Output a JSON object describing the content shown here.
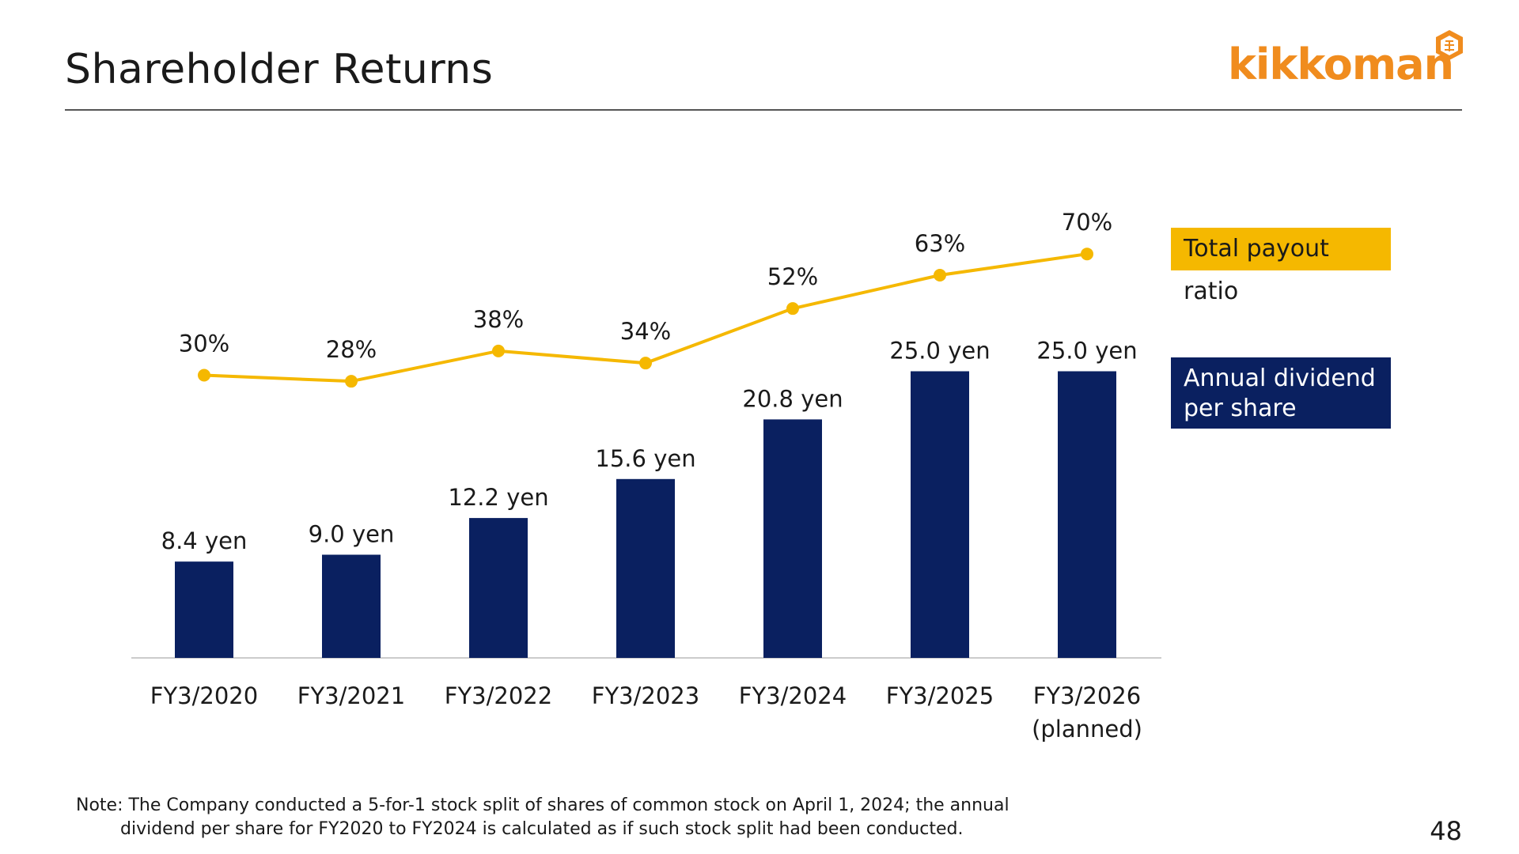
{
  "slide": {
    "title": "Shareholder Returns",
    "logo_text": "kikkoman",
    "note_line1": "Note: The Company conducted a 5-for-1 stock split of shares of common stock on April 1, 2024; the annual",
    "note_line2": "dividend per share for FY2020 to FY2024 is calculated as if such stock split had been conducted.",
    "page_number": "48"
  },
  "colors": {
    "bar": "#0a2060",
    "line": "#f5b800",
    "logo": "#f08c1e"
  },
  "chart_data": {
    "type": "bar",
    "categories": [
      "FY3/2020",
      "FY3/2021",
      "FY3/2022",
      "FY3/2023",
      "FY3/2024",
      "FY3/2025",
      "FY3/2026"
    ],
    "category_sublabels": [
      "",
      "",
      "",
      "",
      "",
      "",
      "(planned)"
    ],
    "series": [
      {
        "name": "Annual dividend per share",
        "type": "bar",
        "values": [
          8.4,
          9.0,
          12.2,
          15.6,
          20.8,
          25.0,
          25.0
        ],
        "labels": [
          "8.4 yen",
          "9.0 yen",
          "12.2 yen",
          "15.6 yen",
          "20.8 yen",
          "25.0 yen",
          "25.0 yen"
        ]
      },
      {
        "name": "Total payout ratio",
        "type": "line",
        "values": [
          30,
          28,
          38,
          34,
          52,
          63,
          70
        ],
        "labels": [
          "30%",
          "28%",
          "38%",
          "34%",
          "52%",
          "63%",
          "70%"
        ]
      }
    ],
    "legend": {
      "payout": "Total payout ratio",
      "dividend_line1": "Annual dividend",
      "dividend_line2": "per share"
    },
    "legend_placement": "right",
    "grid": false
  }
}
